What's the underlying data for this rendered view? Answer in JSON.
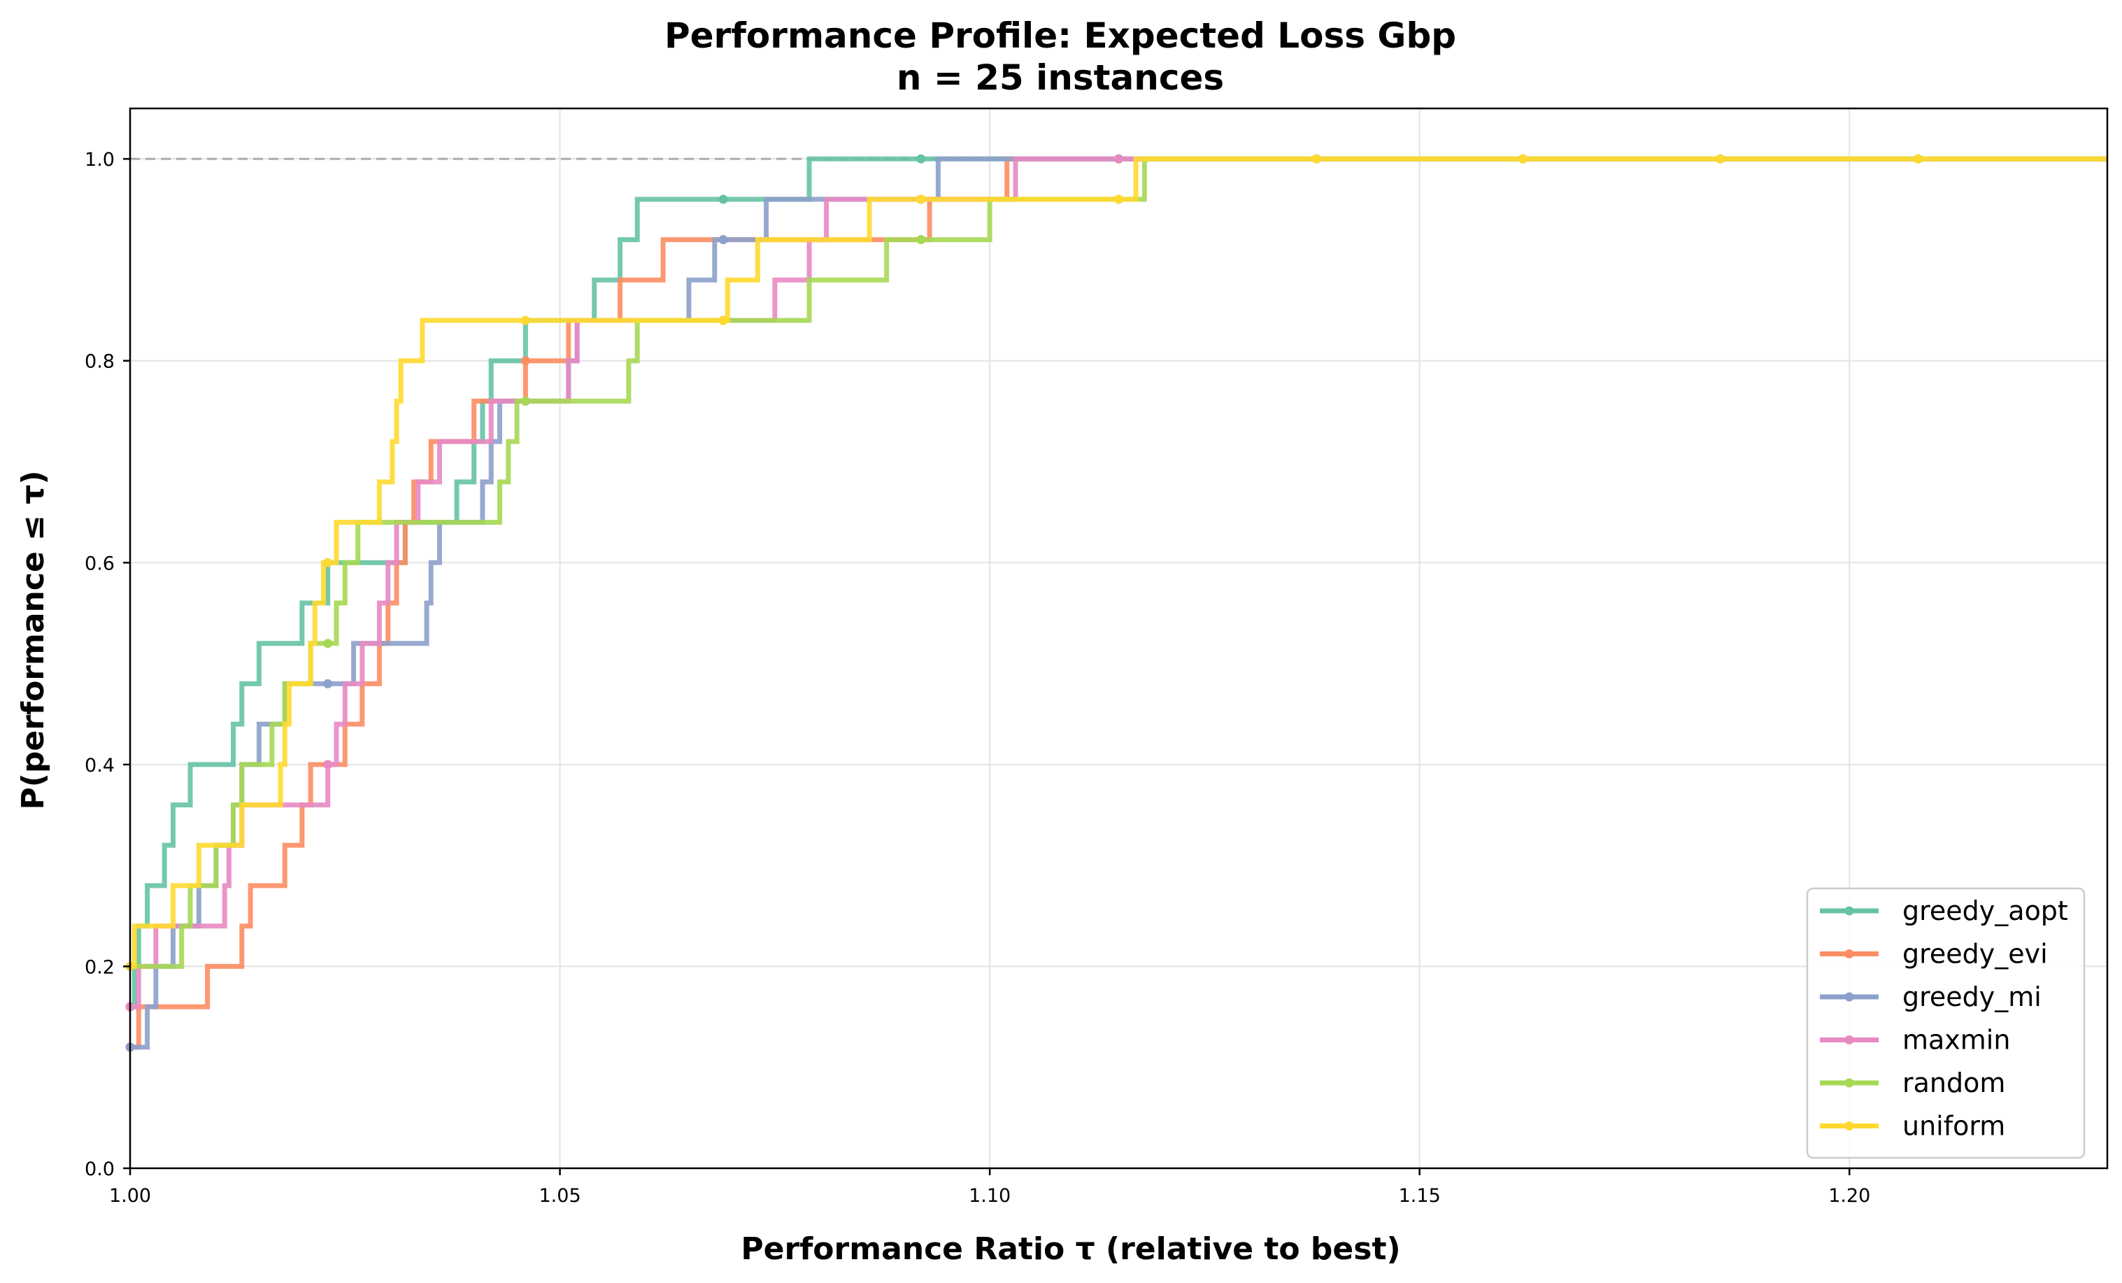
{
  "chart_data": {
    "type": "line",
    "title": "Performance Profile: Expected Loss Gbp",
    "subtitle": "n = 25 instances",
    "xlabel": "Performance Ratio τ (relative to best)",
    "ylabel": "P(performance ≤ τ)",
    "xlim": [
      1.0,
      1.23
    ],
    "ylim": [
      0.0,
      1.05
    ],
    "xticks": [
      1.0,
      1.05,
      1.1,
      1.15,
      1.2
    ],
    "xtick_labels": [
      "1.00",
      "1.05",
      "1.10",
      "1.15",
      "1.20"
    ],
    "yticks": [
      0.0,
      0.2,
      0.4,
      0.6,
      0.8,
      1.0
    ],
    "ytick_labels": [
      "0.0",
      "0.2",
      "0.4",
      "0.6",
      "0.8",
      "1.0"
    ],
    "grid": true,
    "reference_line": 1.0,
    "legend_position": "lower-right",
    "markers_x": [
      1.0,
      1.023,
      1.046,
      1.069,
      1.092,
      1.115,
      1.138,
      1.162,
      1.185,
      1.208
    ],
    "series": [
      {
        "name": "greedy_aopt",
        "color": "#66c2a5",
        "steps": [
          [
            1.0,
            0.16
          ],
          [
            1.0005,
            0.2
          ],
          [
            1.001,
            0.24
          ],
          [
            1.002,
            0.28
          ],
          [
            1.004,
            0.32
          ],
          [
            1.005,
            0.36
          ],
          [
            1.007,
            0.4
          ],
          [
            1.012,
            0.44
          ],
          [
            1.013,
            0.48
          ],
          [
            1.015,
            0.52
          ],
          [
            1.02,
            0.56
          ],
          [
            1.023,
            0.6
          ],
          [
            1.032,
            0.64
          ],
          [
            1.038,
            0.68
          ],
          [
            1.04,
            0.72
          ],
          [
            1.041,
            0.76
          ],
          [
            1.042,
            0.8
          ],
          [
            1.046,
            0.84
          ],
          [
            1.054,
            0.88
          ],
          [
            1.057,
            0.92
          ],
          [
            1.059,
            0.96
          ],
          [
            1.079,
            1.0
          ]
        ]
      },
      {
        "name": "greedy_evi",
        "color": "#fc8d62",
        "steps": [
          [
            1.0,
            0.12
          ],
          [
            1.001,
            0.16
          ],
          [
            1.009,
            0.2
          ],
          [
            1.013,
            0.24
          ],
          [
            1.014,
            0.28
          ],
          [
            1.018,
            0.32
          ],
          [
            1.02,
            0.36
          ],
          [
            1.021,
            0.4
          ],
          [
            1.025,
            0.44
          ],
          [
            1.027,
            0.48
          ],
          [
            1.029,
            0.52
          ],
          [
            1.03,
            0.56
          ],
          [
            1.031,
            0.6
          ],
          [
            1.032,
            0.64
          ],
          [
            1.033,
            0.68
          ],
          [
            1.035,
            0.72
          ],
          [
            1.04,
            0.76
          ],
          [
            1.046,
            0.8
          ],
          [
            1.051,
            0.84
          ],
          [
            1.057,
            0.88
          ],
          [
            1.062,
            0.92
          ],
          [
            1.093,
            0.96
          ],
          [
            1.102,
            1.0
          ]
        ]
      },
      {
        "name": "greedy_mi",
        "color": "#8da0cb",
        "steps": [
          [
            1.0,
            0.12
          ],
          [
            1.002,
            0.16
          ],
          [
            1.003,
            0.2
          ],
          [
            1.005,
            0.24
          ],
          [
            1.008,
            0.28
          ],
          [
            1.01,
            0.32
          ],
          [
            1.012,
            0.36
          ],
          [
            1.013,
            0.4
          ],
          [
            1.015,
            0.44
          ],
          [
            1.018,
            0.48
          ],
          [
            1.026,
            0.52
          ],
          [
            1.0345,
            0.56
          ],
          [
            1.035,
            0.6
          ],
          [
            1.036,
            0.64
          ],
          [
            1.041,
            0.68
          ],
          [
            1.042,
            0.72
          ],
          [
            1.043,
            0.76
          ],
          [
            1.051,
            0.8
          ],
          [
            1.052,
            0.84
          ],
          [
            1.065,
            0.88
          ],
          [
            1.068,
            0.92
          ],
          [
            1.074,
            0.96
          ],
          [
            1.094,
            1.0
          ]
        ]
      },
      {
        "name": "maxmin",
        "color": "#e78ac3",
        "steps": [
          [
            1.0,
            0.16
          ],
          [
            1.001,
            0.2
          ],
          [
            1.003,
            0.24
          ],
          [
            1.011,
            0.28
          ],
          [
            1.0115,
            0.32
          ],
          [
            1.013,
            0.36
          ],
          [
            1.023,
            0.4
          ],
          [
            1.024,
            0.44
          ],
          [
            1.025,
            0.48
          ],
          [
            1.027,
            0.52
          ],
          [
            1.029,
            0.56
          ],
          [
            1.03,
            0.6
          ],
          [
            1.031,
            0.64
          ],
          [
            1.0335,
            0.68
          ],
          [
            1.036,
            0.72
          ],
          [
            1.042,
            0.76
          ],
          [
            1.051,
            0.8
          ],
          [
            1.052,
            0.84
          ],
          [
            1.075,
            0.88
          ],
          [
            1.079,
            0.92
          ],
          [
            1.081,
            0.96
          ],
          [
            1.103,
            1.0
          ]
        ]
      },
      {
        "name": "random",
        "color": "#a6d854",
        "steps": [
          [
            1.0,
            0.2
          ],
          [
            1.006,
            0.24
          ],
          [
            1.007,
            0.28
          ],
          [
            1.01,
            0.32
          ],
          [
            1.012,
            0.36
          ],
          [
            1.013,
            0.4
          ],
          [
            1.0165,
            0.44
          ],
          [
            1.018,
            0.48
          ],
          [
            1.021,
            0.52
          ],
          [
            1.024,
            0.56
          ],
          [
            1.025,
            0.6
          ],
          [
            1.0265,
            0.64
          ],
          [
            1.043,
            0.68
          ],
          [
            1.044,
            0.72
          ],
          [
            1.045,
            0.76
          ],
          [
            1.058,
            0.8
          ],
          [
            1.059,
            0.84
          ],
          [
            1.079,
            0.88
          ],
          [
            1.088,
            0.92
          ],
          [
            1.1,
            0.96
          ],
          [
            1.118,
            1.0
          ]
        ]
      },
      {
        "name": "uniform",
        "color": "#ffd92f",
        "steps": [
          [
            1.0,
            0.2
          ],
          [
            1.0005,
            0.24
          ],
          [
            1.005,
            0.28
          ],
          [
            1.008,
            0.32
          ],
          [
            1.013,
            0.36
          ],
          [
            1.0175,
            0.4
          ],
          [
            1.018,
            0.44
          ],
          [
            1.0185,
            0.48
          ],
          [
            1.021,
            0.52
          ],
          [
            1.0215,
            0.56
          ],
          [
            1.0225,
            0.6
          ],
          [
            1.024,
            0.64
          ],
          [
            1.029,
            0.68
          ],
          [
            1.0305,
            0.72
          ],
          [
            1.031,
            0.76
          ],
          [
            1.0315,
            0.8
          ],
          [
            1.034,
            0.84
          ],
          [
            1.0695,
            0.88
          ],
          [
            1.073,
            0.92
          ],
          [
            1.086,
            0.96
          ],
          [
            1.117,
            1.0
          ]
        ]
      }
    ]
  }
}
